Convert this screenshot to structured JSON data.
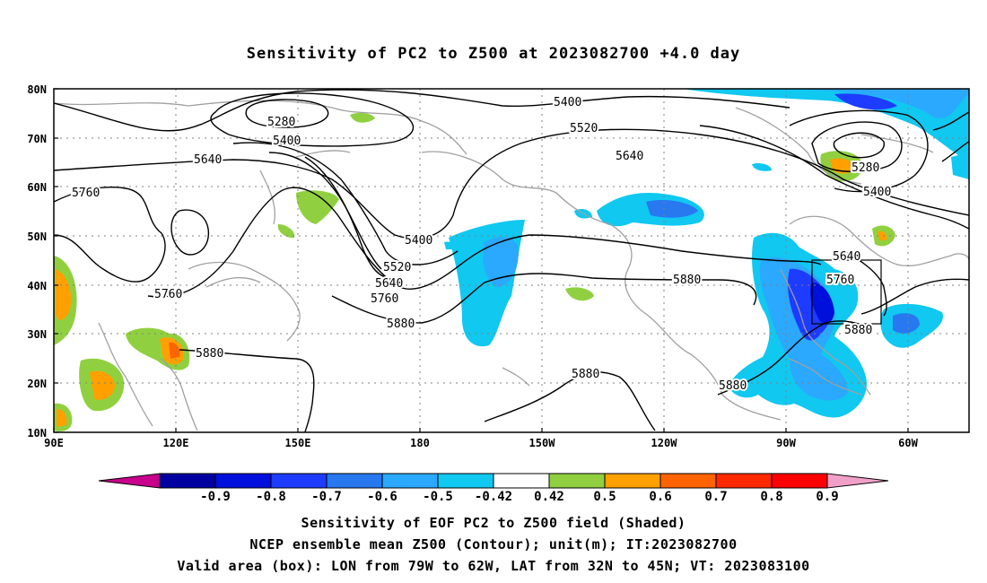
{
  "title": "Sensitivity of PC2 to Z500 at 2023082700 +4.0 day",
  "map": {
    "lon_ticks": [
      "90E",
      "120E",
      "150E",
      "180",
      "150W",
      "120W",
      "90W",
      "60W"
    ],
    "lat_ticks": [
      "80N",
      "70N",
      "60N",
      "50N",
      "40N",
      "30N",
      "20N",
      "10N"
    ],
    "contour_labels": [
      "5280",
      "5400",
      "5640",
      "5760",
      "5400",
      "5520",
      "5640",
      "5760",
      "5880",
      "5400",
      "5520",
      "5640",
      "5760",
      "5880",
      "5880",
      "5880",
      "5640",
      "5760",
      "5880",
      "5280",
      "5400",
      "5880"
    ]
  },
  "colorbar": {
    "labels": [
      "-0.9",
      "-0.8",
      "-0.7",
      "-0.6",
      "-0.5",
      "-0.42",
      "0.42",
      "0.5",
      "0.6",
      "0.7",
      "0.8",
      "0.9"
    ],
    "colors": [
      "#c8008c",
      "#0000a0",
      "#0010dc",
      "#1e3cff",
      "#2878f0",
      "#2ba8ff",
      "#10c8f0",
      "#ffffff",
      "#90d040",
      "#ffa000",
      "#ff6400",
      "#ff2800",
      "#ff0000",
      "#f0a0c8"
    ]
  },
  "captions": {
    "line1": "Sensitivity of EOF PC2 to Z500 field (Shaded)",
    "line2": "NCEP ensemble mean Z500 (Contour); unit(m); IT:2023082700",
    "line3": "Valid area (box): LON from 79W to 62W, LAT from 32N to 45N; VT: 2023083100"
  }
}
